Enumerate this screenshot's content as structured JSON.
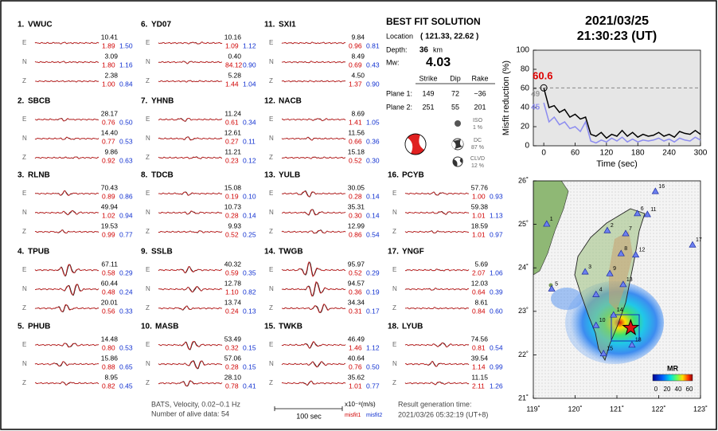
{
  "header": {
    "date": "2021/03/25",
    "time": "21:30:23  (UT)"
  },
  "stations": [
    {
      "number": "1.",
      "code": "VWUC",
      "traces": [
        {
          "comp": "E",
          "amp": "10.41",
          "misfit1": "1.89",
          "misfit2": "1.50"
        },
        {
          "comp": "N",
          "amp": "3.09",
          "misfit1": "1.80",
          "misfit2": "1.16"
        },
        {
          "comp": "Z",
          "amp": "2.38",
          "misfit1": "1.00",
          "misfit2": "0.84"
        }
      ]
    },
    {
      "number": "2.",
      "code": "SBCB",
      "traces": [
        {
          "comp": "E",
          "amp": "28.17",
          "misfit1": "0.76",
          "misfit2": "0.50"
        },
        {
          "comp": "N",
          "amp": "14.40",
          "misfit1": "0.77",
          "misfit2": "0.53"
        },
        {
          "comp": "Z",
          "amp": "9.86",
          "misfit1": "0.92",
          "misfit2": "0.63"
        }
      ]
    },
    {
      "number": "3.",
      "code": "RLNB",
      "traces": [
        {
          "comp": "E",
          "amp": "70.43",
          "misfit1": "0.89",
          "misfit2": "0.86"
        },
        {
          "comp": "N",
          "amp": "49.94",
          "misfit1": "1.02",
          "misfit2": "0.94"
        },
        {
          "comp": "Z",
          "amp": "19.53",
          "misfit1": "0.99",
          "misfit2": "0.77"
        }
      ]
    },
    {
      "number": "4.",
      "code": "TPUB",
      "traces": [
        {
          "comp": "E",
          "amp": "67.11",
          "misfit1": "0.58",
          "misfit2": "0.29"
        },
        {
          "comp": "N",
          "amp": "60.44",
          "misfit1": "0.48",
          "misfit2": "0.24"
        },
        {
          "comp": "Z",
          "amp": "20.01",
          "misfit1": "0.56",
          "misfit2": "0.33"
        }
      ]
    },
    {
      "number": "5.",
      "code": "PHUB",
      "traces": [
        {
          "comp": "E",
          "amp": "14.48",
          "misfit1": "0.80",
          "misfit2": "0.53"
        },
        {
          "comp": "N",
          "amp": "15.86",
          "misfit1": "0.88",
          "misfit2": "0.65"
        },
        {
          "comp": "Z",
          "amp": "8.95",
          "misfit1": "0.82",
          "misfit2": "0.45"
        }
      ]
    },
    {
      "number": "6.",
      "code": "YD07",
      "traces": [
        {
          "comp": "E",
          "amp": "10.16",
          "misfit1": "1.09",
          "misfit2": "1.12"
        },
        {
          "comp": "N",
          "amp": "0.40",
          "misfit1": "84.12",
          "misfit2": "0.90"
        },
        {
          "comp": "Z",
          "amp": "5.28",
          "misfit1": "1.44",
          "misfit2": "1.04"
        }
      ]
    },
    {
      "number": "7.",
      "code": "YHNB",
      "traces": [
        {
          "comp": "E",
          "amp": "11.24",
          "misfit1": "0.61",
          "misfit2": "0.34"
        },
        {
          "comp": "N",
          "amp": "12.61",
          "misfit1": "0.27",
          "misfit2": "0.11"
        },
        {
          "comp": "Z",
          "amp": "11.21",
          "misfit1": "0.23",
          "misfit2": "0.12"
        }
      ]
    },
    {
      "number": "8.",
      "code": "TDCB",
      "traces": [
        {
          "comp": "E",
          "amp": "15.08",
          "misfit1": "0.19",
          "misfit2": "0.10"
        },
        {
          "comp": "N",
          "amp": "10.73",
          "misfit1": "0.28",
          "misfit2": "0.14"
        },
        {
          "comp": "Z",
          "amp": "9.93",
          "misfit1": "0.52",
          "misfit2": "0.25"
        }
      ]
    },
    {
      "number": "9.",
      "code": "SSLB",
      "traces": [
        {
          "comp": "E",
          "amp": "40.32",
          "misfit1": "0.59",
          "misfit2": "0.35"
        },
        {
          "comp": "N",
          "amp": "12.78",
          "misfit1": "1.10",
          "misfit2": "0.82"
        },
        {
          "comp": "Z",
          "amp": "13.74",
          "misfit1": "0.24",
          "misfit2": "0.13"
        }
      ]
    },
    {
      "number": "10.",
      "code": "MASB",
      "traces": [
        {
          "comp": "E",
          "amp": "53.49",
          "misfit1": "0.32",
          "misfit2": "0.15"
        },
        {
          "comp": "N",
          "amp": "57.06",
          "misfit1": "0.28",
          "misfit2": "0.15"
        },
        {
          "comp": "Z",
          "amp": "28.10",
          "misfit1": "0.78",
          "misfit2": "0.41"
        }
      ]
    },
    {
      "number": "11.",
      "code": "SXI1",
      "traces": [
        {
          "comp": "E",
          "amp": "9.84",
          "misfit1": "0.96",
          "misfit2": "0.81"
        },
        {
          "comp": "N",
          "amp": "8.49",
          "misfit1": "0.69",
          "misfit2": "0.43"
        },
        {
          "comp": "Z",
          "amp": "4.50",
          "misfit1": "1.37",
          "misfit2": "0.90"
        }
      ]
    },
    {
      "number": "12.",
      "code": "NACB",
      "traces": [
        {
          "comp": "E",
          "amp": "8.69",
          "misfit1": "1.41",
          "misfit2": "1.05"
        },
        {
          "comp": "N",
          "amp": "11.56",
          "misfit1": "0.66",
          "misfit2": "0.36"
        },
        {
          "comp": "Z",
          "amp": "15.18",
          "misfit1": "0.52",
          "misfit2": "0.30"
        }
      ]
    },
    {
      "number": "13.",
      "code": "YULB",
      "traces": [
        {
          "comp": "E",
          "amp": "30.05",
          "misfit1": "0.28",
          "misfit2": "0.14"
        },
        {
          "comp": "N",
          "amp": "35.31",
          "misfit1": "0.30",
          "misfit2": "0.14"
        },
        {
          "comp": "Z",
          "amp": "12.99",
          "misfit1": "0.86",
          "misfit2": "0.54"
        }
      ]
    },
    {
      "number": "14.",
      "code": "TWGB",
      "traces": [
        {
          "comp": "E",
          "amp": "95.97",
          "misfit1": "0.52",
          "misfit2": "0.29"
        },
        {
          "comp": "N",
          "amp": "94.57",
          "misfit1": "0.36",
          "misfit2": "0.19"
        },
        {
          "comp": "Z",
          "amp": "34.34",
          "misfit1": "0.31",
          "misfit2": "0.17"
        }
      ]
    },
    {
      "number": "15.",
      "code": "TWKB",
      "traces": [
        {
          "comp": "E",
          "amp": "46.49",
          "misfit1": "1.46",
          "misfit2": "1.12"
        },
        {
          "comp": "N",
          "amp": "40.64",
          "misfit1": "0.76",
          "misfit2": "0.50"
        },
        {
          "comp": "Z",
          "amp": "35.62",
          "misfit1": "1.01",
          "misfit2": "0.77"
        }
      ]
    },
    {
      "number": "16.",
      "code": "PCYB",
      "traces": [
        {
          "comp": "E",
          "amp": "57.76",
          "misfit1": "1.00",
          "misfit2": "0.93"
        },
        {
          "comp": "N",
          "amp": "59.38",
          "misfit1": "1.01",
          "misfit2": "1.13"
        },
        {
          "comp": "Z",
          "amp": "18.59",
          "misfit1": "1.01",
          "misfit2": "0.97"
        }
      ]
    },
    {
      "number": "17.",
      "code": "YNGF",
      "traces": [
        {
          "comp": "E",
          "amp": "5.69",
          "misfit1": "2.07",
          "misfit2": "1.06"
        },
        {
          "comp": "N",
          "amp": "12.03",
          "misfit1": "0.64",
          "misfit2": "0.39"
        },
        {
          "comp": "Z",
          "amp": "8.61",
          "misfit1": "0.84",
          "misfit2": "0.60"
        }
      ]
    },
    {
      "number": "18.",
      "code": "LYUB",
      "traces": [
        {
          "comp": "E",
          "amp": "74.56",
          "misfit1": "0.81",
          "misfit2": "0.54"
        },
        {
          "comp": "N",
          "amp": "39.54",
          "misfit1": "1.14",
          "misfit2": "0.99"
        },
        {
          "comp": "Z",
          "amp": "11.15",
          "misfit1": "2.11",
          "misfit2": "1.26"
        }
      ]
    }
  ],
  "best_fit": {
    "title": "BEST FIT SOLUTION",
    "location_label": "Location",
    "location": "( 121.33, 22.62 )",
    "depth_label": "Depth:",
    "depth": "36",
    "depth_unit": "km",
    "mw_label": "Mw:",
    "mw": "4.03",
    "columns": [
      "Strike",
      "Dip",
      "Rake"
    ],
    "planes": [
      {
        "label": "Plane 1:",
        "values": [
          "149",
          "72",
          "−36"
        ]
      },
      {
        "label": "Plane 2:",
        "values": [
          "251",
          "55",
          "201"
        ]
      }
    ],
    "components": [
      {
        "name": "ISO",
        "percent": "1 %"
      },
      {
        "name": "DC",
        "percent": "87 %"
      },
      {
        "name": "CLVD",
        "percent": "12 %"
      }
    ]
  },
  "footer": {
    "filter": "BATS, Velocity, 0.02−0.1 Hz",
    "alive": "Number of alive data: 54",
    "scale": "100 sec",
    "units": "x10⁻⁸(m/s)",
    "misfit1": "misfit1",
    "misfit2": "misfit2",
    "result_label": "Result generation time:",
    "result_time": "2021/03/26 05:32:19 (UT+8)"
  },
  "chart_data": {
    "type": "line",
    "x_label": "Time (sec)",
    "y_label": "Misfit reduction (%)",
    "x": [
      0,
      10,
      20,
      30,
      40,
      50,
      60,
      70,
      80,
      90,
      100,
      110,
      120,
      130,
      140,
      150,
      160,
      170,
      180,
      190,
      200,
      210,
      220,
      230,
      240,
      250,
      260,
      270,
      280,
      290,
      300
    ],
    "series": [
      {
        "color": "#000000",
        "values": [
          60.6,
          40,
          42,
          35,
          38,
          30,
          33,
          28,
          30,
          12,
          10,
          14,
          8,
          12,
          10,
          16,
          10,
          14,
          9,
          12,
          10,
          11,
          14,
          10,
          12,
          9,
          15,
          13,
          12,
          16,
          12
        ]
      },
      {
        "color": "#8c8cf0",
        "values": [
          45,
          25,
          30,
          22,
          25,
          18,
          20,
          15,
          25,
          5,
          3,
          6,
          4,
          8,
          5,
          9,
          4,
          7,
          4,
          6,
          5,
          6,
          8,
          5,
          7,
          4,
          8,
          6,
          5,
          9,
          6
        ]
      }
    ],
    "annotations": [
      {
        "value": 60.6,
        "color": "#dd0000"
      },
      {
        "value": 49,
        "color": "#999999"
      },
      {
        "value": 45,
        "color": "#8c8cf0"
      }
    ],
    "xlim": [
      -20,
      300
    ],
    "xticks": [
      0,
      60,
      120,
      180,
      240,
      300
    ],
    "ylim": [
      0,
      100
    ],
    "yticks": [
      0,
      20,
      40,
      60,
      80,
      100
    ],
    "background": "#e6e6e6"
  },
  "map": {
    "xlim": [
      119,
      123
    ],
    "ylim": [
      21,
      26
    ],
    "xticks": [
      {
        "value": 119,
        "label": "119˚"
      },
      {
        "value": 120,
        "label": "120˚"
      },
      {
        "value": 121,
        "label": "121˚"
      },
      {
        "value": 122,
        "label": "122˚"
      },
      {
        "value": 123,
        "label": "123˚"
      }
    ],
    "yticks": [
      {
        "value": 21,
        "label": "21˚"
      },
      {
        "value": 22,
        "label": "22˚"
      },
      {
        "value": 23,
        "label": "23˚"
      },
      {
        "value": 24,
        "label": "24˚"
      },
      {
        "value": 25,
        "label": "25˚"
      },
      {
        "value": 26,
        "label": "26˚"
      }
    ],
    "epicenter": [
      121.33,
      22.62
    ],
    "stations": [
      {
        "label": "1",
        "lon": 119.32,
        "lat": 25.01
      },
      {
        "label": "2",
        "lon": 120.77,
        "lat": 24.86
      },
      {
        "label": "3",
        "lon": 120.24,
        "lat": 23.91
      },
      {
        "label": "4",
        "lon": 120.5,
        "lat": 23.39
      },
      {
        "label": "5",
        "lon": 119.44,
        "lat": 23.52
      },
      {
        "label": "6",
        "lon": 121.49,
        "lat": 25.25
      },
      {
        "label": "7",
        "lon": 121.21,
        "lat": 24.79
      },
      {
        "label": "8",
        "lon": 121.1,
        "lat": 24.33
      },
      {
        "label": "9",
        "lon": 120.83,
        "lat": 23.87
      },
      {
        "label": "10",
        "lon": 120.5,
        "lat": 22.68
      },
      {
        "label": "11",
        "lon": 121.73,
        "lat": 25.23
      },
      {
        "label": "12",
        "lon": 121.45,
        "lat": 24.3
      },
      {
        "label": "13",
        "lon": 121.15,
        "lat": 23.62
      },
      {
        "label": "14",
        "lon": 120.92,
        "lat": 22.92
      },
      {
        "label": "15",
        "lon": 120.68,
        "lat": 22.03
      },
      {
        "label": "16",
        "lon": 121.92,
        "lat": 25.76
      },
      {
        "label": "17",
        "lon": 122.81,
        "lat": 24.53
      },
      {
        "label": "18",
        "lon": 121.36,
        "lat": 22.23
      }
    ],
    "colorbar": {
      "title": "MR",
      "ticks": [
        0,
        20,
        40,
        60
      ]
    }
  }
}
